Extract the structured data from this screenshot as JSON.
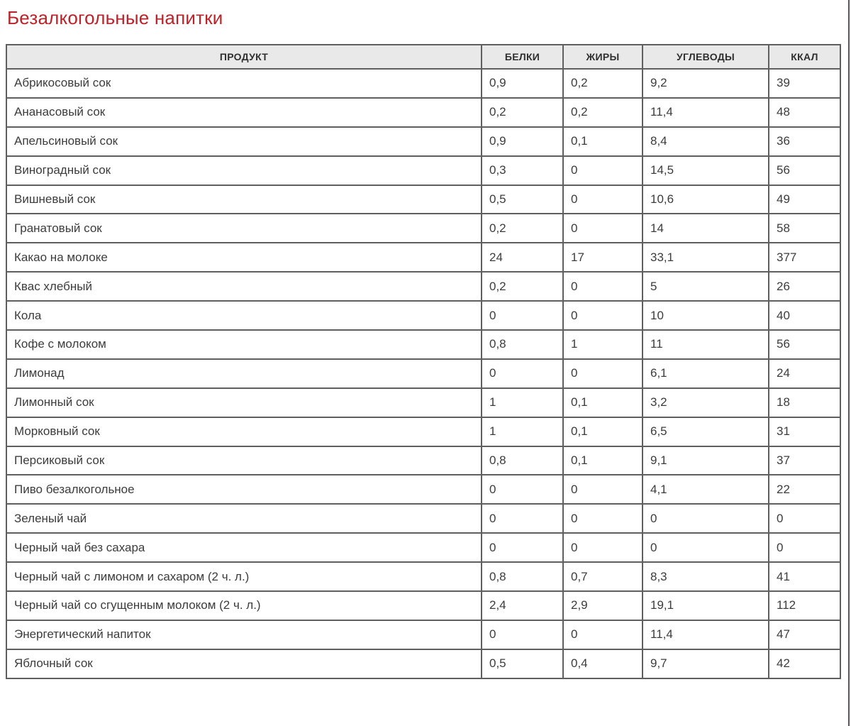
{
  "page": {
    "title": "Безалкогольные напитки"
  },
  "colors": {
    "title": "#ba2329",
    "header_bg": "#e9e9e9",
    "border": "#5f5f5f",
    "body_text": "#3c3c3c"
  },
  "table": {
    "headers": [
      "ПРОДУКТ",
      "БЕЛКИ",
      "ЖИРЫ",
      "УГЛЕВОДЫ",
      "ККАЛ"
    ],
    "rows": [
      {
        "product": "Абрикосовый сок",
        "proteins": "0,9",
        "fats": "0,2",
        "carbs": "9,2",
        "kcal": "39"
      },
      {
        "product": "Ананасовый сок",
        "proteins": "0,2",
        "fats": "0,2",
        "carbs": "11,4",
        "kcal": "48"
      },
      {
        "product": "Апельсиновый сок",
        "proteins": "0,9",
        "fats": "0,1",
        "carbs": "8,4",
        "kcal": "36"
      },
      {
        "product": "Виноградный сок",
        "proteins": "0,3",
        "fats": "0",
        "carbs": "14,5",
        "kcal": "56"
      },
      {
        "product": "Вишневый сок",
        "proteins": "0,5",
        "fats": "0",
        "carbs": "10,6",
        "kcal": "49"
      },
      {
        "product": "Гранатовый сок",
        "proteins": "0,2",
        "fats": "0",
        "carbs": "14",
        "kcal": "58"
      },
      {
        "product": "Какао на молоке",
        "proteins": "24",
        "fats": "17",
        "carbs": "33,1",
        "kcal": "377"
      },
      {
        "product": "Квас хлебный",
        "proteins": "0,2",
        "fats": "0",
        "carbs": "5",
        "kcal": "26"
      },
      {
        "product": "Кола",
        "proteins": "0",
        "fats": "0",
        "carbs": "10",
        "kcal": "40"
      },
      {
        "product": "Кофе с молоком",
        "proteins": "0,8",
        "fats": "1",
        "carbs": "11",
        "kcal": "56"
      },
      {
        "product": "Лимонад",
        "proteins": "0",
        "fats": "0",
        "carbs": "6,1",
        "kcal": "24"
      },
      {
        "product": "Лимонный сок",
        "proteins": "1",
        "fats": "0,1",
        "carbs": "3,2",
        "kcal": "18"
      },
      {
        "product": "Морковный сок",
        "proteins": "1",
        "fats": "0,1",
        "carbs": "6,5",
        "kcal": "31"
      },
      {
        "product": "Персиковый сок",
        "proteins": "0,8",
        "fats": "0,1",
        "carbs": "9,1",
        "kcal": "37"
      },
      {
        "product": "Пиво безалкогольное",
        "proteins": "0",
        "fats": "0",
        "carbs": "4,1",
        "kcal": "22"
      },
      {
        "product": "Зеленый чай",
        "proteins": "0",
        "fats": "0",
        "carbs": "0",
        "kcal": "0"
      },
      {
        "product": "Черный чай без сахара",
        "proteins": "0",
        "fats": "0",
        "carbs": "0",
        "kcal": "0"
      },
      {
        "product": "Черный чай с лимоном и сахаром (2 ч. л.)",
        "proteins": "0,8",
        "fats": "0,7",
        "carbs": "8,3",
        "kcal": "41"
      },
      {
        "product": "Черный чай со сгущенным молоком (2 ч. л.)",
        "proteins": "2,4",
        "fats": "2,9",
        "carbs": "19,1",
        "kcal": "112"
      },
      {
        "product": "Энергетический напиток",
        "proteins": "0",
        "fats": "0",
        "carbs": "11,4",
        "kcal": "47"
      },
      {
        "product": "Яблочный сок",
        "proteins": "0,5",
        "fats": "0,4",
        "carbs": "9,7",
        "kcal": "42"
      }
    ]
  }
}
